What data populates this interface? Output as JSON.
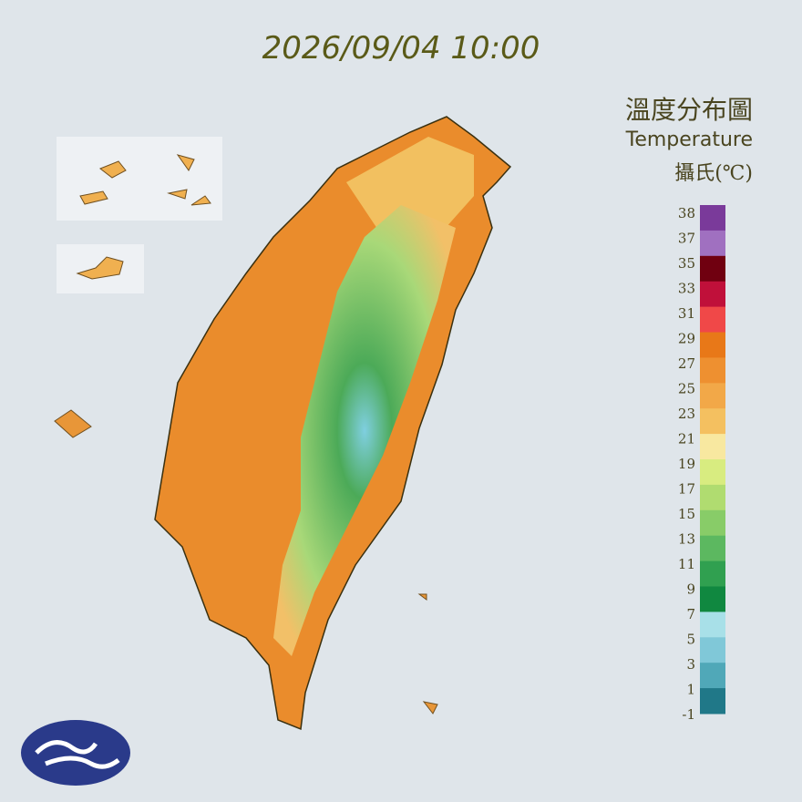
{
  "header": {
    "timestamp": "2026/09/04 10:00",
    "title": "溫度分布圖",
    "subtitle": "Temperature",
    "unit": "攝氏(℃)"
  },
  "legend": {
    "ticks": [
      "38",
      "37",
      "35",
      "33",
      "31",
      "29",
      "27",
      "25",
      "23",
      "21",
      "19",
      "17",
      "15",
      "13",
      "11",
      "9",
      "7",
      "5",
      "3",
      "1",
      "-1"
    ],
    "colors": [
      "#7a3a9a",
      "#a070c0",
      "#700010",
      "#c0103a",
      "#f04848",
      "#e87818",
      "#ee9030",
      "#f2a848",
      "#f4c060",
      "#f8e8a0",
      "#d8ec80",
      "#b0dc70",
      "#88cc68",
      "#5cb860",
      "#30a050",
      "#108840",
      "#a8e0e8",
      "#80c8d8",
      "#50a8b8",
      "#207888"
    ]
  }
}
